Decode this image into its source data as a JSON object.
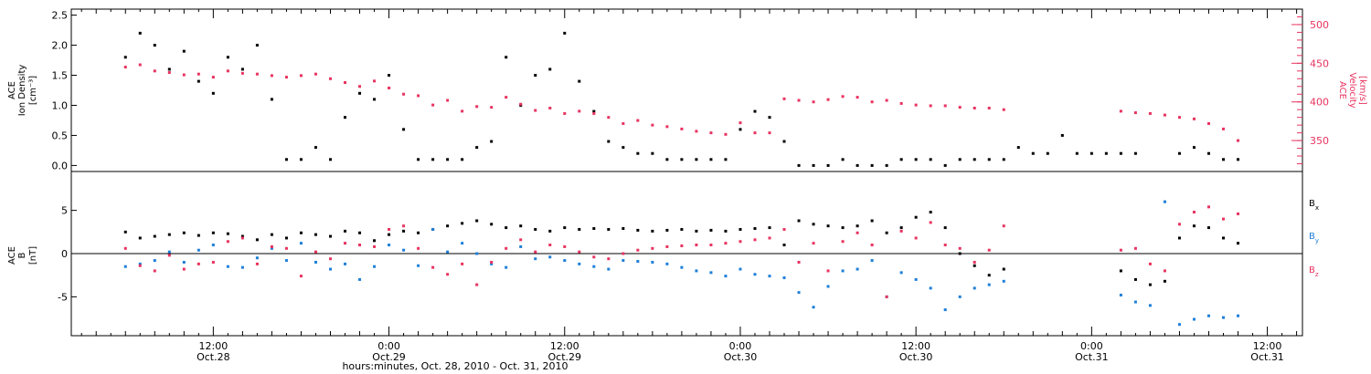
{
  "chart_data": [
    {
      "type": "scatter",
      "panel": "top",
      "ylabel_lines": [
        "ACE",
        "Ion Density",
        "[cm⁻³]"
      ],
      "ylabel2_lines": [
        "ACE",
        "Velocity",
        "[km/s]"
      ],
      "ylim": [
        -0.1,
        2.6
      ],
      "y2lim": [
        310,
        520
      ],
      "yticks": [
        0.0,
        0.5,
        1.0,
        1.5,
        2.0,
        2.5
      ],
      "ytick_labels": [
        "0.0",
        "0.5",
        "1.0",
        "1.5",
        "2.0",
        "2.5"
      ],
      "y2ticks": [
        350,
        400,
        450,
        500
      ],
      "y2tick_labels": [
        "350",
        "400",
        "450",
        "500"
      ],
      "series": [
        {
          "name": "",
          "color": "#000000",
          "axis": "left",
          "x": [
            6,
            7,
            8,
            9,
            10,
            11,
            12,
            13,
            14,
            15,
            16,
            17,
            18,
            19,
            20,
            21,
            22,
            23,
            24,
            25,
            26,
            27,
            28,
            29,
            30,
            31,
            32,
            33,
            34,
            35,
            36,
            37,
            38,
            39,
            40,
            41,
            42,
            43,
            44,
            45,
            46,
            47,
            48,
            49,
            50,
            51,
            52,
            53,
            54,
            55,
            56,
            57,
            58,
            59,
            60,
            61,
            62,
            63,
            64,
            65,
            66,
            67,
            68,
            69,
            70,
            71,
            72,
            73,
            74,
            75,
            76,
            77,
            78,
            79,
            80,
            81,
            82
          ],
          "y": [
            1.8,
            2.2,
            2.0,
            1.6,
            1.9,
            1.4,
            1.2,
            1.8,
            1.6,
            2.0,
            1.1,
            0.1,
            0.1,
            0.3,
            0.1,
            0.8,
            1.2,
            1.1,
            1.5,
            0.6,
            0.1,
            0.1,
            0.1,
            0.1,
            0.3,
            0.4,
            1.8,
            1.0,
            1.5,
            1.6,
            2.2,
            1.4,
            0.9,
            0.4,
            0.3,
            0.2,
            0.2,
            0.1,
            0.1,
            0.1,
            0.1,
            0.1,
            0.6,
            0.9,
            0.8,
            0.4,
            0.0,
            0.0,
            0.0,
            0.1,
            0.0,
            0.0,
            0.0,
            0.1,
            0.1,
            0.1,
            0.0,
            0.1,
            0.1,
            0.1,
            0.1,
            0.3,
            0.2,
            0.2,
            0.5,
            0.2,
            0.2,
            0.2,
            0.2,
            0.2,
            null,
            null,
            0.2,
            0.3,
            0.2,
            0.1,
            0.1
          ]
        },
        {
          "name": "",
          "color": "#e8335f",
          "axis": "right",
          "x": [
            6,
            7,
            8,
            9,
            10,
            11,
            12,
            13,
            14,
            15,
            16,
            17,
            18,
            19,
            20,
            21,
            22,
            23,
            24,
            25,
            26,
            27,
            28,
            29,
            30,
            31,
            32,
            33,
            34,
            35,
            36,
            37,
            38,
            39,
            40,
            41,
            42,
            43,
            44,
            45,
            46,
            47,
            48,
            49,
            50,
            51,
            52,
            53,
            54,
            55,
            56,
            57,
            58,
            59,
            60,
            61,
            62,
            63,
            64,
            65,
            66,
            67,
            68,
            69,
            70,
            71,
            72,
            73,
            74,
            75,
            76,
            77,
            78,
            79,
            80,
            81,
            82
          ],
          "y": [
            445,
            448,
            440,
            438,
            435,
            436,
            432,
            440,
            437,
            436,
            434,
            432,
            434,
            436,
            430,
            425,
            420,
            427,
            418,
            410,
            408,
            396,
            402,
            388,
            394,
            393,
            406,
            397,
            389,
            392,
            385,
            388,
            385,
            380,
            372,
            376,
            370,
            368,
            365,
            362,
            360,
            358,
            373,
            360,
            360,
            404,
            402,
            400,
            403,
            407,
            406,
            400,
            402,
            398,
            396,
            395,
            395,
            393,
            392,
            392,
            390,
            null,
            null,
            null,
            null,
            null,
            null,
            null,
            388,
            386,
            385,
            383,
            380,
            378,
            372,
            365,
            350
          ]
        }
      ]
    },
    {
      "type": "scatter",
      "panel": "bottom",
      "ylabel_lines": [
        "ACE",
        "B",
        "[nT]"
      ],
      "ylim": [
        -9.5,
        9.5
      ],
      "yticks": [
        -5,
        0,
        5
      ],
      "ytick_labels": [
        "-5",
        "0",
        "5"
      ],
      "series": [
        {
          "name": "Bx",
          "color": "#000000",
          "x": [
            6,
            7,
            8,
            9,
            10,
            11,
            12,
            13,
            14,
            15,
            16,
            17,
            18,
            19,
            20,
            21,
            22,
            23,
            24,
            25,
            26,
            27,
            28,
            29,
            30,
            31,
            32,
            33,
            34,
            35,
            36,
            37,
            38,
            39,
            40,
            41,
            42,
            43,
            44,
            45,
            46,
            47,
            48,
            49,
            50,
            51,
            52,
            53,
            54,
            55,
            56,
            57,
            58,
            59,
            60,
            61,
            62,
            63,
            64,
            65,
            66,
            67,
            68,
            69,
            70,
            71,
            72,
            73,
            74,
            75,
            76,
            77,
            78,
            79,
            80,
            81,
            82
          ],
          "y": [
            2.5,
            1.8,
            2.0,
            2.2,
            2.4,
            2.1,
            2.4,
            2.3,
            2.0,
            1.6,
            2.2,
            1.8,
            2.4,
            2.2,
            2.0,
            2.6,
            2.4,
            1.5,
            2.2,
            2.6,
            2.4,
            2.8,
            3.2,
            3.5,
            3.8,
            3.4,
            3.0,
            3.2,
            2.8,
            2.6,
            3.0,
            2.8,
            2.9,
            2.8,
            2.9,
            2.7,
            2.6,
            2.7,
            2.8,
            2.6,
            2.7,
            2.6,
            2.8,
            2.9,
            3.0,
            1.0,
            3.8,
            3.4,
            3.2,
            3.0,
            3.2,
            3.8,
            2.4,
            3.0,
            4.2,
            4.8,
            3.0,
            0.0,
            -1.4,
            -2.5,
            -1.8,
            null,
            null,
            null,
            null,
            null,
            null,
            null,
            -2.0,
            -3.0,
            -3.6,
            -3.2,
            1.8,
            3.2,
            3.0,
            1.8,
            1.2
          ]
        },
        {
          "name": "By",
          "color": "#1e7fd8",
          "x": [
            6,
            7,
            8,
            9,
            10,
            11,
            12,
            13,
            14,
            15,
            16,
            17,
            18,
            19,
            20,
            21,
            22,
            23,
            24,
            25,
            26,
            27,
            28,
            29,
            30,
            31,
            32,
            33,
            34,
            35,
            36,
            37,
            38,
            39,
            40,
            41,
            42,
            43,
            44,
            45,
            46,
            47,
            48,
            49,
            50,
            51,
            52,
            53,
            54,
            55,
            56,
            57,
            58,
            59,
            60,
            61,
            62,
            63,
            64,
            65,
            66,
            67,
            68,
            69,
            70,
            71,
            72,
            73,
            74,
            75,
            76,
            77,
            78,
            79,
            80,
            81,
            82
          ],
          "y": [
            -1.5,
            -1.2,
            -0.8,
            0.2,
            -1.0,
            0.4,
            1.0,
            -1.5,
            -1.6,
            -0.5,
            0.6,
            -0.8,
            1.2,
            -1.0,
            -1.8,
            -1.2,
            -3.0,
            -1.5,
            1.0,
            0.4,
            -1.4,
            2.8,
            0.2,
            1.2,
            0.0,
            -1.2,
            -1.6,
            0.8,
            -0.6,
            -0.4,
            -0.8,
            -1.2,
            -1.5,
            -1.8,
            -0.8,
            -0.9,
            -1.0,
            -1.2,
            -1.6,
            -2.0,
            -2.2,
            -2.6,
            -1.8,
            -2.4,
            -2.6,
            -2.8,
            -4.5,
            -6.2,
            -3.8,
            -2.0,
            -1.8,
            -0.8,
            -5.0,
            -2.2,
            -3.0,
            -4.0,
            -6.5,
            -5.0,
            -4.0,
            -3.6,
            -3.2,
            null,
            null,
            null,
            null,
            null,
            null,
            null,
            -4.8,
            -5.6,
            -6.0,
            6.0,
            -8.2,
            -7.6,
            -7.2,
            -7.4,
            -7.2
          ]
        },
        {
          "name": "Bz",
          "color": "#e8335f",
          "x": [
            6,
            7,
            8,
            9,
            10,
            11,
            12,
            13,
            14,
            15,
            16,
            17,
            18,
            19,
            20,
            21,
            22,
            23,
            24,
            25,
            26,
            27,
            28,
            29,
            30,
            31,
            32,
            33,
            34,
            35,
            36,
            37,
            38,
            39,
            40,
            41,
            42,
            43,
            44,
            45,
            46,
            47,
            48,
            49,
            50,
            51,
            52,
            53,
            54,
            55,
            56,
            57,
            58,
            59,
            60,
            61,
            62,
            63,
            64,
            65,
            66,
            67,
            68,
            69,
            70,
            71,
            72,
            73,
            74,
            75,
            76,
            77,
            78,
            79,
            80,
            81,
            82
          ],
          "y": [
            0.6,
            -1.4,
            -2.0,
            -0.2,
            -1.8,
            -1.2,
            -1.0,
            1.4,
            1.8,
            -1.2,
            0.8,
            0.6,
            -2.6,
            0.2,
            -0.6,
            1.2,
            1.0,
            0.8,
            2.8,
            3.2,
            0.6,
            -1.6,
            -2.4,
            -1.2,
            -3.6,
            -1.0,
            0.6,
            1.6,
            0.2,
            1.0,
            0.8,
            0.2,
            -0.4,
            -0.6,
            0.0,
            0.4,
            0.6,
            0.8,
            0.9,
            1.0,
            1.0,
            1.2,
            1.4,
            1.6,
            1.8,
            2.8,
            -1.0,
            1.2,
            -2.0,
            1.4,
            2.4,
            1.0,
            -5.0,
            2.6,
            1.8,
            3.6,
            1.0,
            0.6,
            -1.0,
            0.4,
            3.2,
            null,
            null,
            null,
            null,
            null,
            null,
            null,
            0.4,
            0.6,
            -1.2,
            -2.0,
            3.4,
            4.8,
            5.4,
            4.0,
            4.6
          ]
        }
      ]
    }
  ],
  "x_axis": {
    "ticks": [
      {
        "h": 12,
        "time": "12:00",
        "date": "Oct.28"
      },
      {
        "h": 24,
        "time": "0:00",
        "date": "Oct.29"
      },
      {
        "h": 36,
        "time": "12:00",
        "date": "Oct.29"
      },
      {
        "h": 48,
        "time": "0:00",
        "date": "Oct.30"
      },
      {
        "h": 60,
        "time": "12:00",
        "date": "Oct.30"
      },
      {
        "h": 72,
        "time": "0:00",
        "date": "Oct.31"
      },
      {
        "h": 84,
        "time": "12:00",
        "date": "Oct.31"
      }
    ],
    "xlim": [
      2.3,
      86.4
    ],
    "label": "hours:minutes, Oct. 28, 2010 - Oct. 31, 2010"
  },
  "legend": {
    "bx": "B",
    "bx_sub": "x",
    "by": "B",
    "by_sub": "y",
    "bz": "B",
    "bz_sub": "z"
  },
  "colors": {
    "black": "#000000",
    "pink": "#e8335f",
    "blue": "#1e7fd8"
  }
}
